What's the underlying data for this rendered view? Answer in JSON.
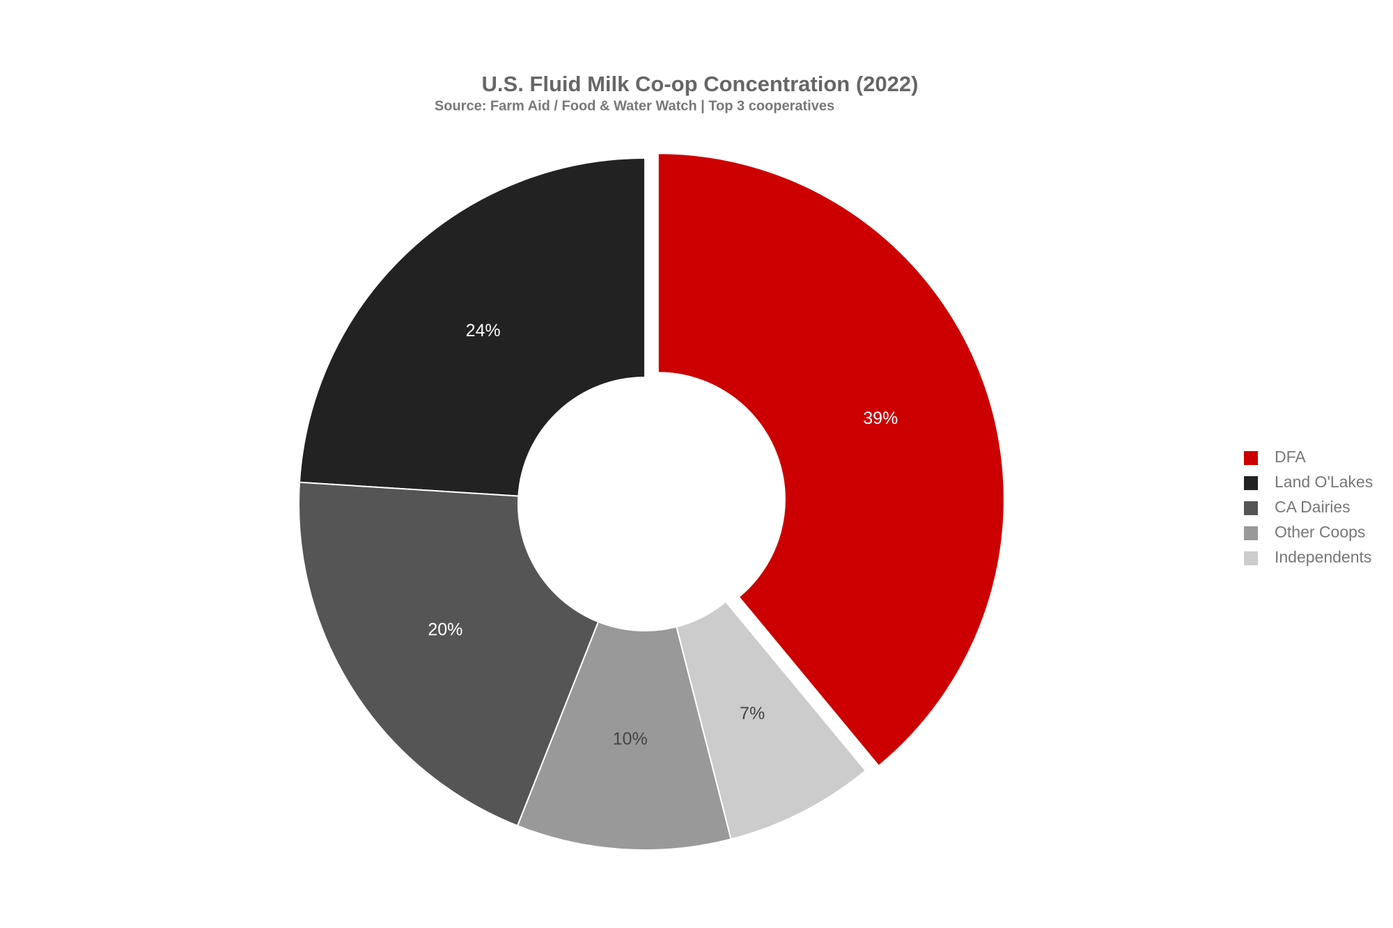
{
  "chart_data": {
    "type": "pie",
    "title": "U.S. Fluid Milk Co-op Concentration (2022)",
    "subtitle": "Source: Farm Aid / Food & Water Watch | Top 3 cooperatives",
    "categories": [
      "DFA",
      "Land O'Lakes",
      "CA Dairies",
      "Other Coops",
      "Independents"
    ],
    "values": [
      39,
      24,
      20,
      10,
      7
    ],
    "value_labels": [
      "39%",
      "24%",
      "20%",
      "10%",
      "7%"
    ],
    "colors": [
      "#cc0000",
      "#222222",
      "#555555",
      "#999999",
      "#cccccc"
    ],
    "legend": "right"
  }
}
